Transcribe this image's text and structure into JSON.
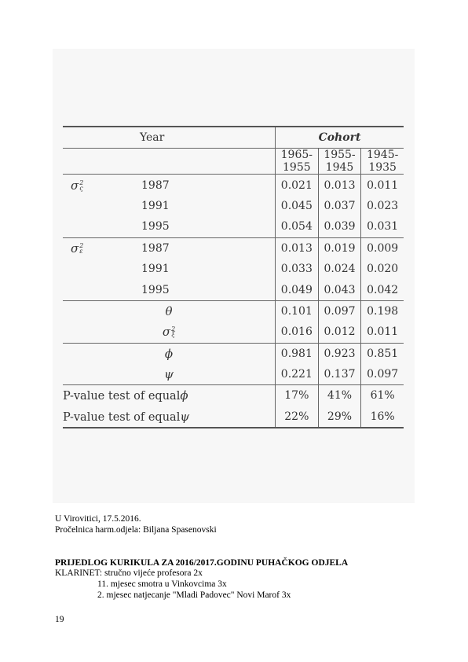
{
  "table": {
    "header": {
      "year": "Year",
      "cohort": "Cohort"
    },
    "columns": [
      "1965-1955",
      "1955-1945",
      "1945-1935"
    ],
    "rows": [
      {
        "symbol": "σ",
        "sup": "2",
        "sub": "ς",
        "year": "1987",
        "values": [
          "0.021",
          "0.013",
          "0.011"
        ]
      },
      {
        "symbol": "",
        "sup": "",
        "sub": "",
        "year": "1991",
        "values": [
          "0.045",
          "0.037",
          "0.023"
        ]
      },
      {
        "symbol": "",
        "sup": "",
        "sub": "",
        "year": "1995",
        "values": [
          "0.054",
          "0.039",
          "0.031"
        ]
      },
      {
        "symbol": "σ",
        "sup": "2",
        "sub": "ε",
        "year": "1987",
        "values": [
          "0.013",
          "0.019",
          "0.009"
        ]
      },
      {
        "symbol": "",
        "sup": "",
        "sub": "",
        "year": "1991",
        "values": [
          "0.033",
          "0.024",
          "0.020"
        ]
      },
      {
        "symbol": "",
        "sup": "",
        "sub": "",
        "year": "1995",
        "values": [
          "0.049",
          "0.043",
          "0.042"
        ]
      },
      {
        "symbol": "θ",
        "sup": "",
        "sub": "",
        "year": "",
        "values": [
          "0.101",
          "0.097",
          "0.198"
        ]
      },
      {
        "symbol": "σ",
        "sup": "2",
        "sub": "ξ",
        "year": "",
        "values": [
          "0.016",
          "0.012",
          "0.011"
        ]
      },
      {
        "symbol": "ϕ",
        "sup": "",
        "sub": "",
        "year": "",
        "values": [
          "0.981",
          "0.923",
          "0.851"
        ]
      },
      {
        "symbol": "ψ",
        "sup": "",
        "sub": "",
        "year": "",
        "values": [
          "0.221",
          "0.137",
          "0.097"
        ]
      },
      {
        "label": "P-value test of equal",
        "label_sym": "ϕ",
        "values": [
          "17%",
          "41%",
          "61%"
        ]
      },
      {
        "label": "P-value test of equal",
        "label_sym": "ψ",
        "values": [
          "22%",
          "29%",
          "16%"
        ]
      }
    ]
  },
  "lines": [
    "U Virovitici, 17.5.2016.",
    "Pročelnica harm.odjela: Biljana Spasenovski",
    "PRIJEDLOG KURIKULA ZA 2016/2017.GODINU PUHAČKOG ODJELA",
    "KLARINET:  stručno vijeće profesora 2x",
    "11. mjesec smotra u Vinkovcima  3x",
    " 2. mjesec natjecanje \"Mladi Padovec\" Novi Marof  3x",
    "19"
  ]
}
